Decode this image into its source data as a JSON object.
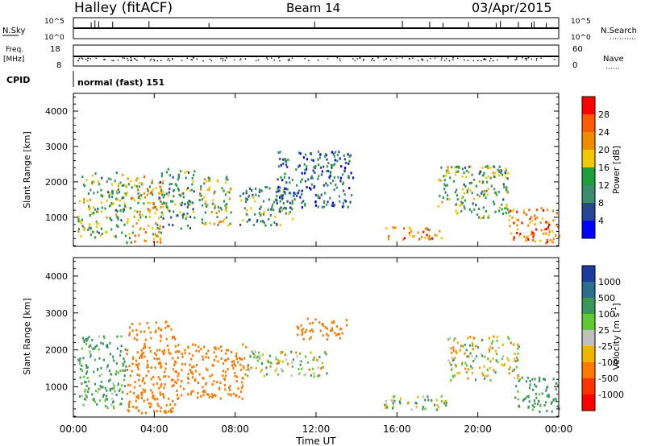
{
  "header": {
    "station": "Halley (fitACF)",
    "beam": "Beam 14",
    "date": "03/Apr/2015"
  },
  "noise_panel": {
    "left_label": "N.Sky",
    "right_label": "N.Search",
    "left_ticks": [
      "10^5",
      "10^0"
    ],
    "right_ticks": [
      "10^5",
      "10^0"
    ]
  },
  "freq_panel": {
    "left_label_1": "Freq.",
    "left_label_2": "[MHz]",
    "right_label": "Nave",
    "left_ticks": [
      "18",
      "8"
    ],
    "right_ticks": [
      "60",
      "0"
    ]
  },
  "cpid": {
    "label": "CPID",
    "value": "normal (fast) 151"
  },
  "power_panel": {
    "ylabel": "Slant Range [km]",
    "yticks": [
      "4000",
      "3000",
      "2000",
      "1000"
    ],
    "colorbar_label": "Power [dB]",
    "colorbar_ticks": [
      "28",
      "24",
      "20",
      "16",
      "12",
      "8",
      "4"
    ],
    "colorbar_colors": [
      "#ff0000",
      "#ff5a00",
      "#f08c00",
      "#f0c800",
      "#1e9e3c",
      "#3c8c6e",
      "#284696",
      "#0000ff"
    ]
  },
  "velocity_panel": {
    "ylabel": "Slant Range [km]",
    "yticks": [
      "4000",
      "3000",
      "2000",
      "1000"
    ],
    "colorbar_label": "Velocity [m s",
    "colorbar_label_sup": "-1",
    "colorbar_label_end": "]",
    "colorbar_ticks": [
      "1000",
      "500",
      "100",
      "25",
      "-25",
      "-100",
      "-500",
      "-1000"
    ],
    "colorbar_colors": [
      "#1e3ca0",
      "#2d6e8c",
      "#3c9660",
      "#64c832",
      "#c0c0c0",
      "#f0b400",
      "#ff7800",
      "#ff3200",
      "#ff0000"
    ]
  },
  "xaxis": {
    "ticks": [
      "00:00",
      "04:00",
      "08:00",
      "12:00",
      "16:00",
      "20:00",
      "00:00"
    ],
    "label": "Time UT"
  },
  "chart_data": [
    {
      "type": "heatmap",
      "title": "Halley (fitACF) Beam 14 03/Apr/2015",
      "xlabel": "Time UT",
      "ylabel": "Slant Range [km]",
      "xlim": [
        0,
        24
      ],
      "ylim": [
        180,
        4500
      ],
      "colorbar": "Power [dB]",
      "clim": [
        0,
        30
      ],
      "clusters": [
        {
          "t": [
            0.2,
            2.6
          ],
          "r": [
            450,
            2300
          ],
          "v": 12
        },
        {
          "t": [
            2.6,
            4.4
          ],
          "r": [
            300,
            2200
          ],
          "v": 18
        },
        {
          "t": [
            4.2,
            6.0
          ],
          "r": [
            700,
            2400
          ],
          "v": 10
        },
        {
          "t": [
            6.2,
            7.8
          ],
          "r": [
            800,
            2200
          ],
          "v": 14
        },
        {
          "t": [
            8.2,
            10.8
          ],
          "r": [
            800,
            1900
          ],
          "v": 10
        },
        {
          "t": [
            10.0,
            13.8
          ],
          "r": [
            1300,
            2900
          ],
          "v": 6
        },
        {
          "t": [
            15.3,
            18.2
          ],
          "r": [
            400,
            760
          ],
          "v": 20
        },
        {
          "t": [
            18.0,
            21.5
          ],
          "r": [
            1000,
            2500
          ],
          "v": 12
        },
        {
          "t": [
            21.5,
            24.0
          ],
          "r": [
            300,
            1300
          ],
          "v": 22
        }
      ]
    },
    {
      "type": "heatmap",
      "title": "Halley (fitACF) Beam 14 03/Apr/2015",
      "xlabel": "Time UT",
      "ylabel": "Slant Range [km]",
      "xlim": [
        0,
        24
      ],
      "ylim": [
        180,
        4500
      ],
      "colorbar": "Velocity [m s-1]",
      "clim": [
        -1000,
        1000
      ],
      "clusters": [
        {
          "t": [
            0.2,
            2.6
          ],
          "r": [
            450,
            2400
          ],
          "v": 150
        },
        {
          "t": [
            2.6,
            5.0
          ],
          "r": [
            300,
            2800
          ],
          "v": -300
        },
        {
          "t": [
            5.0,
            8.5
          ],
          "r": [
            700,
            2200
          ],
          "v": -350
        },
        {
          "t": [
            8.5,
            12.5
          ],
          "r": [
            1300,
            2000
          ],
          "v": 0
        },
        {
          "t": [
            11.0,
            13.5
          ],
          "r": [
            2300,
            2900
          ],
          "v": -300
        },
        {
          "t": [
            15.3,
            18.5
          ],
          "r": [
            400,
            800
          ],
          "v": 60
        },
        {
          "t": [
            18.5,
            22.0
          ],
          "r": [
            1200,
            2400
          ],
          "v": 0
        },
        {
          "t": [
            21.8,
            24.0
          ],
          "r": [
            300,
            1300
          ],
          "v": 200
        }
      ]
    }
  ]
}
